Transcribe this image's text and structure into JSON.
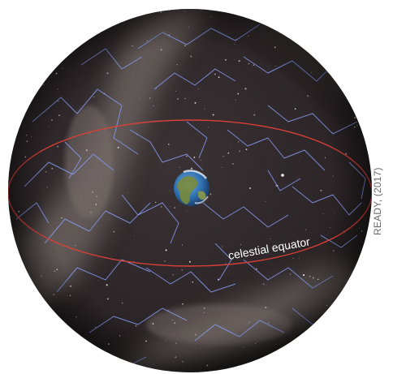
{
  "figure": {
    "equator_label": "celestial equator",
    "credit": "READY, (2017)"
  },
  "colors": {
    "sky": "#2e2729",
    "milky_way": "#6b625f",
    "constellation_lines": "#8a9bf0",
    "equator_line": "#d9403a",
    "earth_ocean": "#2f6fb0",
    "earth_land": "#7a8a3c",
    "text": "#ffffff",
    "credit_text": "#6a6a6a"
  }
}
